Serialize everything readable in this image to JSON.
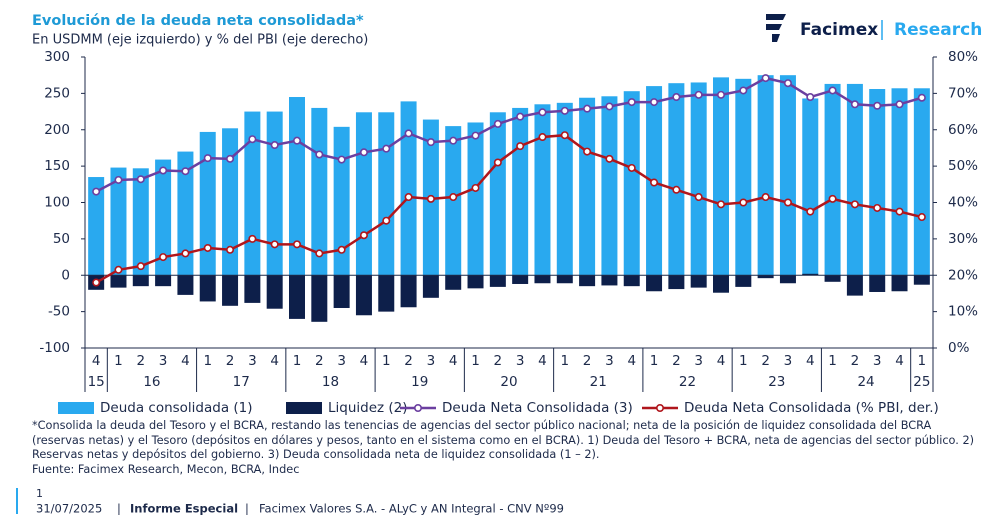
{
  "chart_data": {
    "type": "combo",
    "title": "Evolución de la deuda neta consolidada*",
    "subtitle": "En USDMM (eje izquierdo) y % del PBI (eje derecho)",
    "categories": [
      "4",
      "1",
      "2",
      "3",
      "4",
      "1",
      "2",
      "3",
      "4",
      "1",
      "2",
      "3",
      "4",
      "1",
      "2",
      "3",
      "4",
      "1",
      "2",
      "3",
      "4",
      "1",
      "2",
      "3",
      "4",
      "1",
      "2",
      "3",
      "4",
      "1",
      "2",
      "3",
      "4",
      "1",
      "2",
      "3",
      "4",
      "1"
    ],
    "years": [
      "15",
      "16",
      "17",
      "18",
      "19",
      "20",
      "21",
      "22",
      "23",
      "24",
      "25"
    ],
    "ylim": [
      -100,
      300
    ],
    "yticks": [
      -100,
      -50,
      0,
      50,
      100,
      150,
      200,
      250,
      300
    ],
    "y2lim": [
      0,
      80
    ],
    "y2ticks": [
      {
        "value": 0,
        "label": "0%"
      },
      {
        "value": 10,
        "label": "10%"
      },
      {
        "value": 20,
        "label": "20%"
      },
      {
        "value": 30,
        "label": "30%"
      },
      {
        "value": 40,
        "label": "40%"
      },
      {
        "value": 50,
        "label": "50%"
      },
      {
        "value": 60,
        "label": "60%"
      },
      {
        "value": 70,
        "label": "70%"
      },
      {
        "value": 80,
        "label": "80%"
      }
    ],
    "series": [
      {
        "name": "Deuda consolidada (1)",
        "type": "bar",
        "color": "#29a9ef",
        "values": [
          135,
          148,
          147,
          159,
          170,
          197,
          202,
          225,
          225,
          245,
          230,
          204,
          224,
          224,
          239,
          214,
          205,
          210,
          224,
          230,
          235,
          237,
          244,
          246,
          253,
          260,
          264,
          265,
          272,
          270,
          275,
          275,
          243,
          263,
          263,
          256,
          257,
          257
        ]
      },
      {
        "name": "Liquidez (2)",
        "type": "bar",
        "color": "#0d1f4a",
        "values": [
          -20,
          -17,
          -15,
          -15,
          -27,
          -36,
          -42,
          -38,
          -46,
          -60,
          -64,
          -45,
          -55,
          -50,
          -44,
          -31,
          -20,
          -18,
          -16,
          -12,
          -11,
          -11,
          -15,
          -14,
          -15,
          -22,
          -19,
          -17,
          -24,
          -16,
          -4,
          -11,
          2,
          -9,
          -28,
          -23,
          -22,
          -13
        ]
      },
      {
        "name": "Deuda Neta Consolidada (3)",
        "type": "line",
        "color": "#6b3fa0",
        "values": [
          115,
          131,
          132,
          144,
          143,
          161,
          160,
          187,
          179,
          185,
          166,
          159,
          169,
          174,
          195,
          183,
          185,
          192,
          208,
          218,
          224,
          226,
          229,
          232,
          238,
          238,
          245,
          248,
          248,
          254,
          271,
          264,
          245,
          254,
          235,
          233,
          235,
          244
        ]
      },
      {
        "name": "Deuda Neta Consolidada (% PBI, der.)",
        "type": "line",
        "axis": "y2",
        "color": "#b0161c",
        "values": [
          18,
          21.5,
          22.5,
          25,
          26,
          27.5,
          27,
          30,
          28.5,
          28.5,
          26,
          27,
          31,
          35,
          41.5,
          41,
          41.5,
          44,
          51,
          55.5,
          58,
          58.5,
          54,
          52,
          49.5,
          45.5,
          43.5,
          41.5,
          39.5,
          40,
          41.5,
          40,
          37.5,
          41,
          39.5,
          38.5,
          37.5,
          36
        ]
      }
    ]
  },
  "footnote": "*Consolida la deuda del Tesoro y el BCRA, restando las tenencias de agencias del sector público nacional; neta de la posición de liquidez consolidada del BCRA (reservas netas) y el Tesoro (depósitos en dólares y pesos, tanto en el sistema como en el BCRA). 1) Deuda del Tesoro + BCRA, neta de agencias del sector público. 2) Reservas netas y depósitos del gobierno. 3) Deuda consolidada neta de liquidez consolidada (1 – 2).",
  "source": "Fuente: Facimex Research, Mecon, BCRA, Indec",
  "logo": {
    "brand": "Facimex",
    "section": "Research"
  },
  "footer": {
    "page": "1",
    "date": "31/07/2025",
    "report": "Informe Especial",
    "company": "Facimex Valores S.A. - ALyC y AN Integral - CNV Nº99"
  }
}
